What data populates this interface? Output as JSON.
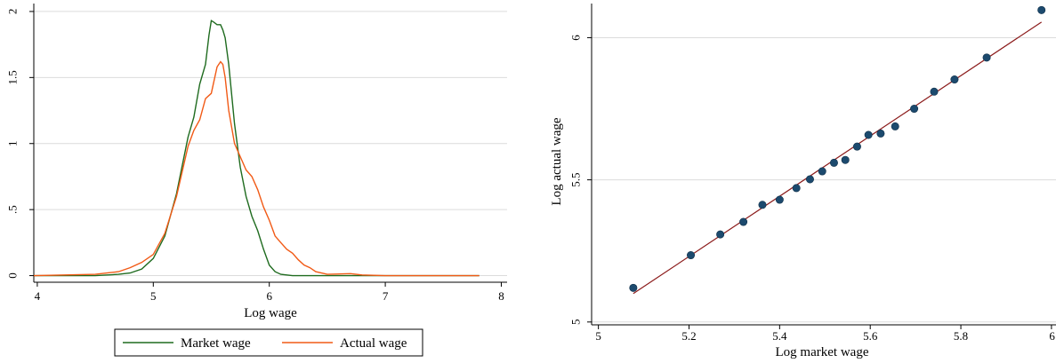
{
  "colors": {
    "market": "#1f6b1f",
    "actual": "#f15a16",
    "points": "#1c4a6e",
    "fit": "#8b1a1a",
    "grid": "#dcdcdc"
  },
  "chart_data": [
    {
      "type": "line",
      "xlabel": "Log wage",
      "ylabel": "",
      "xlim": [
        3.97,
        8.05
      ],
      "ylim": [
        -0.05,
        2.06
      ],
      "xticks": [
        "4",
        "5",
        "6",
        "7",
        "8"
      ],
      "xtick_values": [
        4,
        5,
        6,
        7,
        8
      ],
      "yticks": [
        "0",
        ".5",
        "1",
        "1.5",
        "2"
      ],
      "ytick_values": [
        0,
        0.5,
        1,
        1.5,
        2
      ],
      "grid": true,
      "legend_position": "bottom",
      "series": [
        {
          "name": "Market wage",
          "x": [
            3.97,
            4.5,
            4.7,
            4.8,
            4.9,
            5.0,
            5.1,
            5.2,
            5.3,
            5.35,
            5.4,
            5.45,
            5.48,
            5.5,
            5.52,
            5.55,
            5.58,
            5.6,
            5.62,
            5.65,
            5.7,
            5.75,
            5.8,
            5.85,
            5.9,
            5.95,
            6.0,
            6.05,
            6.1,
            6.2,
            6.4,
            7.0,
            7.81
          ],
          "values": [
            0,
            0,
            0.01,
            0.02,
            0.05,
            0.13,
            0.3,
            0.62,
            1.05,
            1.2,
            1.45,
            1.6,
            1.82,
            1.93,
            1.92,
            1.9,
            1.9,
            1.86,
            1.8,
            1.6,
            1.15,
            0.82,
            0.6,
            0.45,
            0.34,
            0.2,
            0.08,
            0.03,
            0.01,
            0,
            0,
            0,
            0
          ]
        },
        {
          "name": "Actual wage",
          "x": [
            3.97,
            4.5,
            4.6,
            4.7,
            4.8,
            4.9,
            5.0,
            5.1,
            5.2,
            5.3,
            5.35,
            5.4,
            5.45,
            5.5,
            5.55,
            5.58,
            5.6,
            5.62,
            5.65,
            5.7,
            5.75,
            5.8,
            5.85,
            5.9,
            5.95,
            6.0,
            6.05,
            6.1,
            6.15,
            6.2,
            6.25,
            6.3,
            6.35,
            6.4,
            6.5,
            6.7,
            6.8,
            7.0,
            7.81
          ],
          "values": [
            0,
            0.01,
            0.02,
            0.03,
            0.06,
            0.1,
            0.16,
            0.32,
            0.6,
            0.98,
            1.1,
            1.18,
            1.34,
            1.38,
            1.58,
            1.62,
            1.6,
            1.5,
            1.25,
            1.0,
            0.9,
            0.8,
            0.75,
            0.65,
            0.52,
            0.42,
            0.3,
            0.25,
            0.2,
            0.17,
            0.12,
            0.08,
            0.06,
            0.03,
            0.01,
            0.015,
            0.005,
            0,
            0
          ]
        }
      ]
    },
    {
      "type": "scatter",
      "xlabel": "Log market wage",
      "ylabel": "Log actual wage",
      "xlim": [
        4.985,
        6.01
      ],
      "ylim": [
        4.99,
        6.12
      ],
      "xticks": [
        "5",
        "5.2",
        "5.4",
        "5.6",
        "5.8",
        "6"
      ],
      "xtick_values": [
        5,
        5.2,
        5.4,
        5.6,
        5.8,
        6
      ],
      "yticks": [
        "5",
        "5.5",
        "6"
      ],
      "ytick_values": [
        5,
        5.5,
        6
      ],
      "grid": true,
      "points": {
        "x": [
          5.077,
          5.204,
          5.269,
          5.32,
          5.362,
          5.4,
          5.437,
          5.467,
          5.494,
          5.52,
          5.545,
          5.571,
          5.596,
          5.623,
          5.655,
          5.697,
          5.741,
          5.786,
          5.857,
          5.978
        ],
        "y": [
          5.12,
          5.235,
          5.308,
          5.352,
          5.412,
          5.43,
          5.471,
          5.502,
          5.53,
          5.56,
          5.57,
          5.617,
          5.658,
          5.663,
          5.688,
          5.75,
          5.81,
          5.853,
          5.93,
          6.097
        ]
      },
      "fit_line": {
        "x": [
          5.077,
          5.978
        ],
        "y": [
          5.1,
          6.055
        ]
      }
    }
  ]
}
